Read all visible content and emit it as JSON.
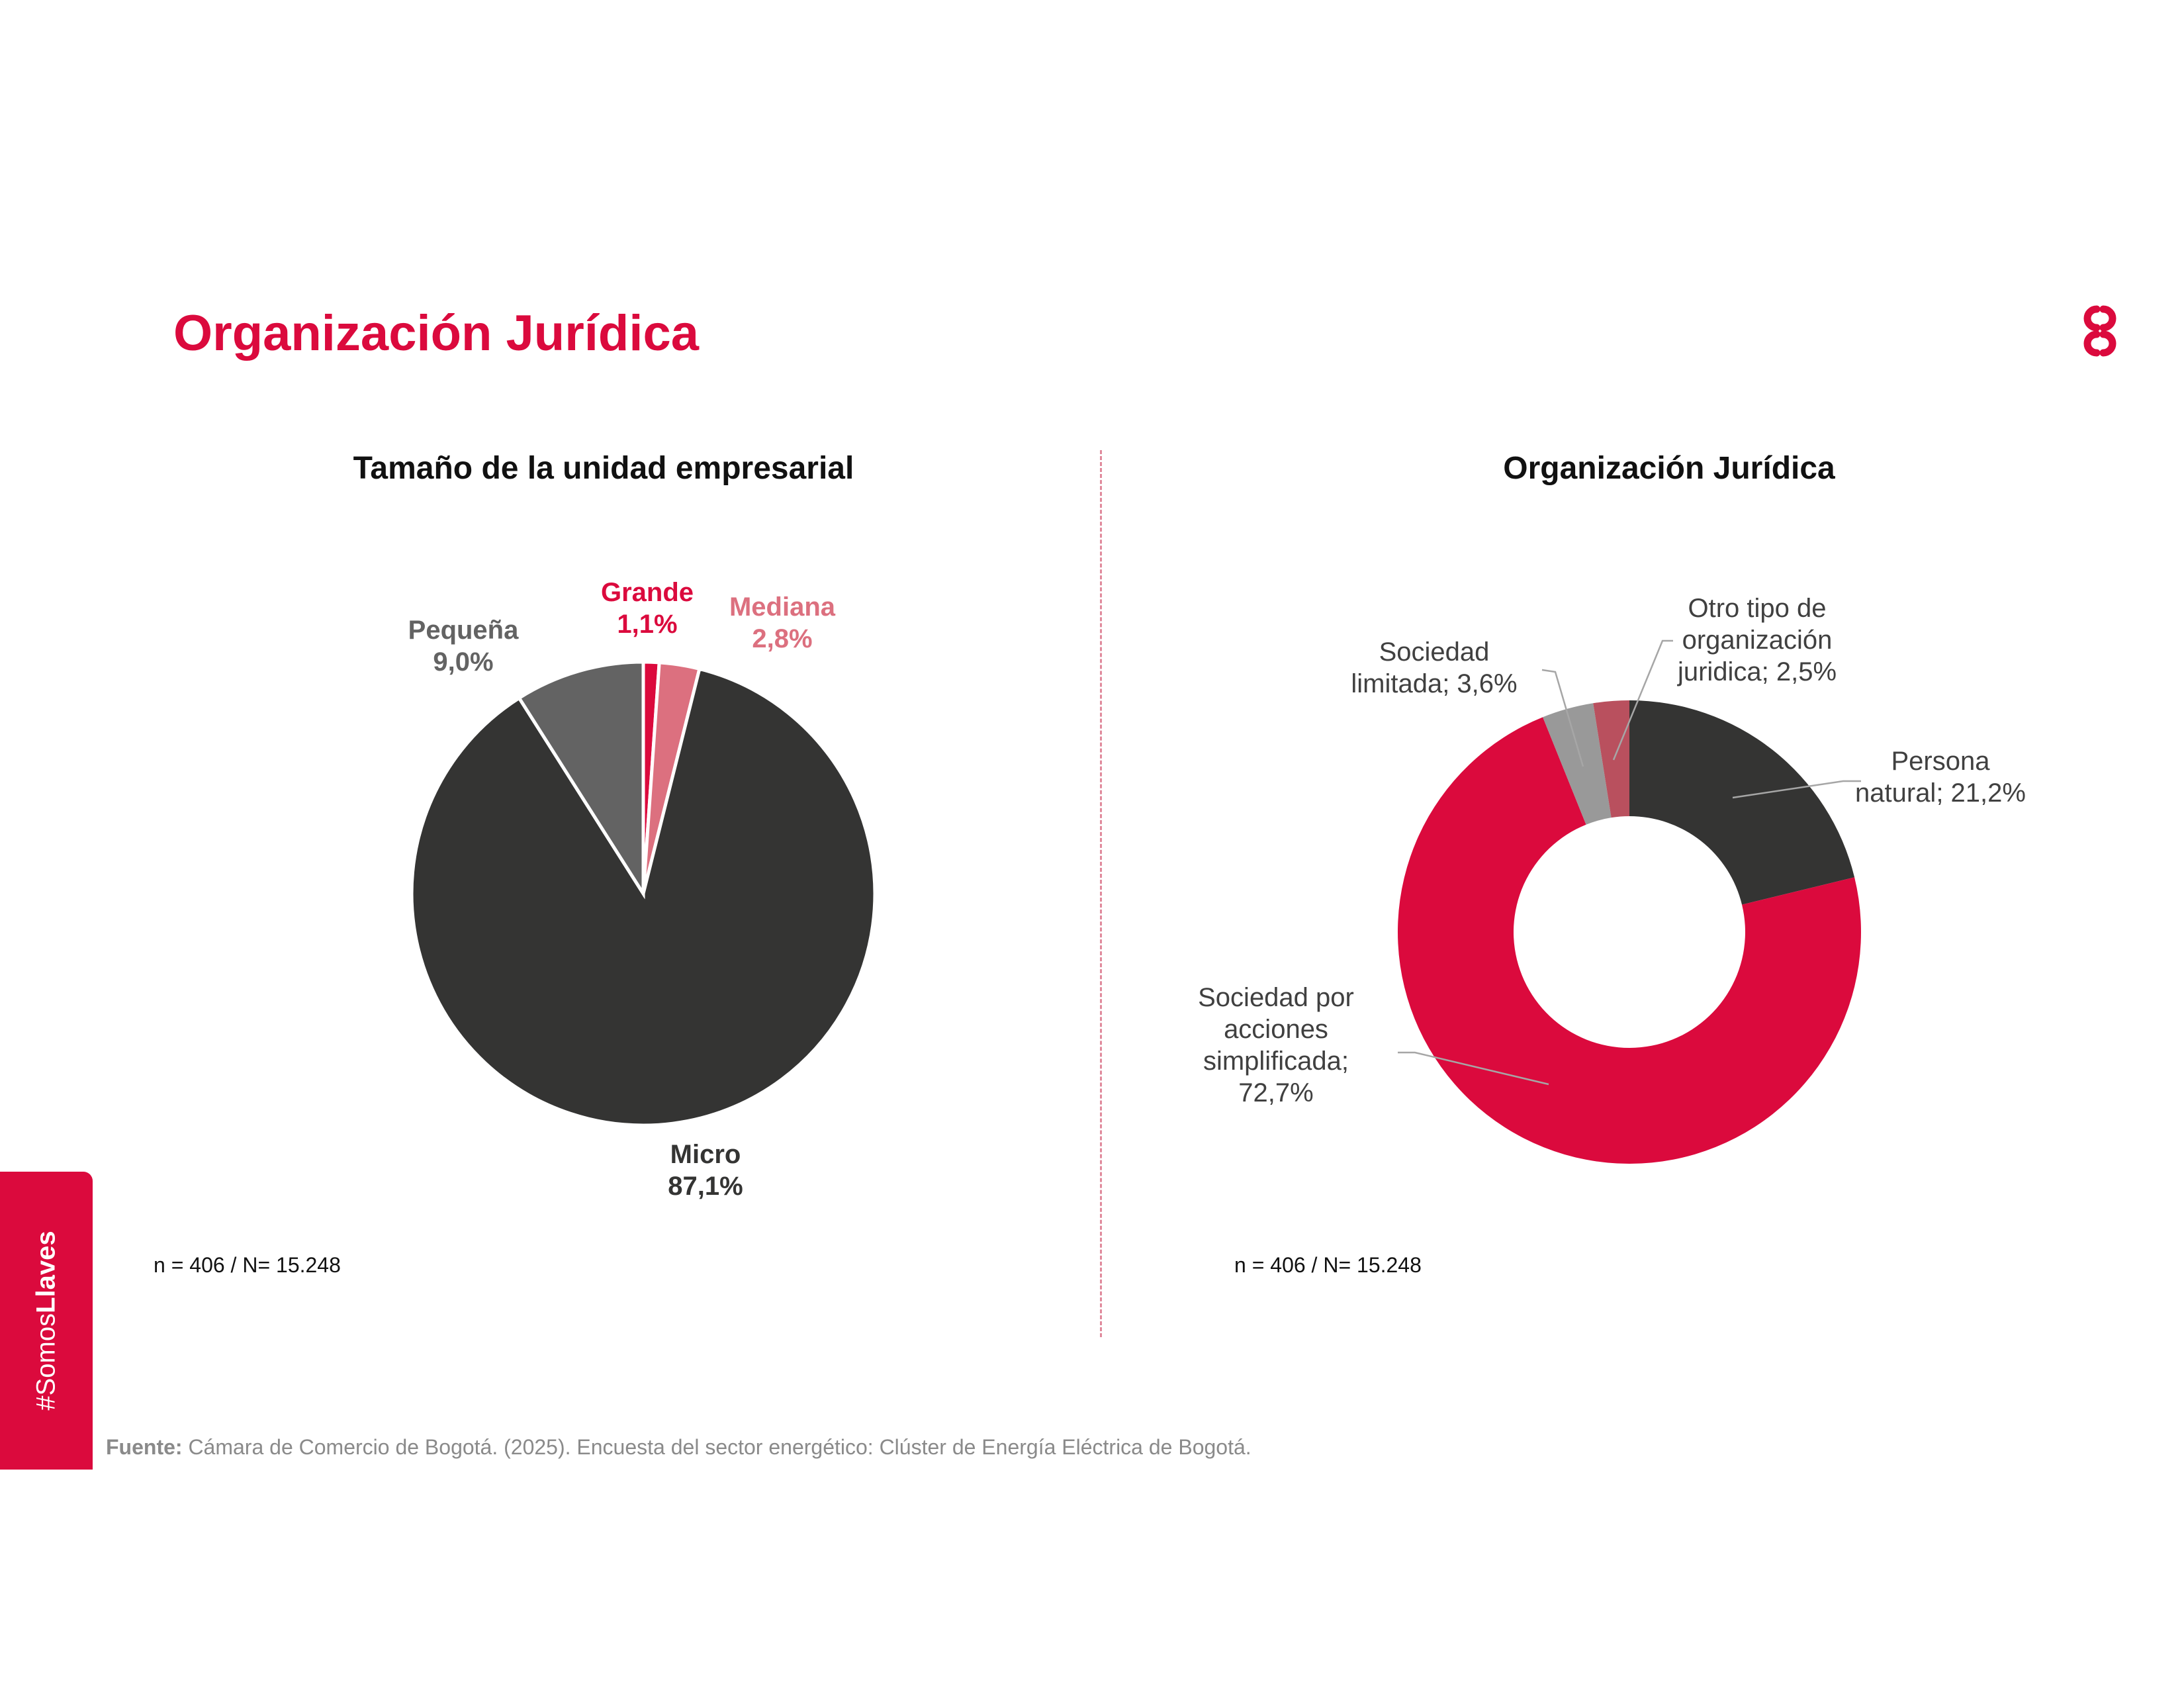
{
  "page": {
    "title": "Organización Jurídica",
    "source_label": "Fuente:",
    "source_text": "Cámara de Comercio de Bogotá. (2025). Encuesta del sector energético: Clúster de Energía Eléctrica de Bogotá.",
    "side_tab_prefix": "#Somos",
    "side_tab_bold": "Llaves",
    "logo_icon": "ccb-logo-icon",
    "accent_color": "#db0a3d"
  },
  "chart_data": [
    {
      "type": "pie",
      "title": "Tamaño de la unidad empresarial",
      "note": "n = 406 / N= 15.248",
      "slices": [
        {
          "name": "Grande",
          "value": 1.1,
          "display": "1,1%",
          "color": "#db0a3d"
        },
        {
          "name": "Mediana",
          "value": 2.8,
          "display": "2,8%",
          "color": "#dc707f"
        },
        {
          "name": "Micro",
          "value": 87.1,
          "display": "87,1%",
          "color": "#343433"
        },
        {
          "name": "Pequeña",
          "value": 9.0,
          "display": "9,0%",
          "color": "#636363"
        }
      ]
    },
    {
      "type": "pie",
      "subtype": "donut",
      "title": "Organización Jurídica",
      "note": "n = 406 / N= 15.248",
      "slices": [
        {
          "name": "Persona natural",
          "value": 21.2,
          "display": "Persona natural; 21,2%",
          "color": "#343433",
          "label_lines": [
            "Persona",
            "natural; 21,2%"
          ]
        },
        {
          "name": "Sociedad por acciones simplificada",
          "value": 72.7,
          "display": "Sociedad por acciones simplificada; 72,7%",
          "color": "#db0a3d",
          "label_lines": [
            "Sociedad por",
            "acciones",
            "simplificada;",
            "72,7%"
          ]
        },
        {
          "name": "Sociedad limitada",
          "value": 3.6,
          "display": "Sociedad limitada; 3,6%",
          "color": "#999999",
          "label_lines": [
            "Sociedad",
            "limitada; 3,6%"
          ]
        },
        {
          "name": "Otro tipo de organización juridica",
          "value": 2.5,
          "display": "Otro tipo de organización juridica; 2,5%",
          "color": "#b9505e",
          "label_lines": [
            "Otro tipo de",
            "organización",
            "juridica; 2,5%"
          ]
        }
      ]
    }
  ]
}
